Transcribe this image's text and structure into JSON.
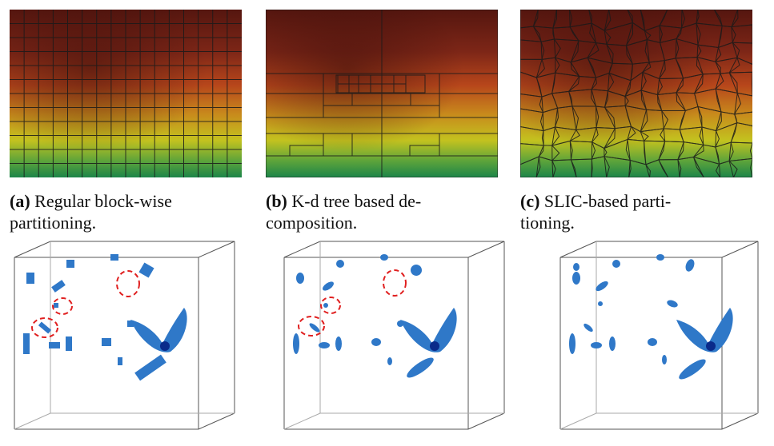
{
  "captions": {
    "a": {
      "tag": "(a)",
      "line1": "Regular block-wise",
      "line2": "partitioning."
    },
    "b": {
      "tag": "(b)",
      "line1": "K-d tree based de-",
      "line2": "composition."
    },
    "c": {
      "tag": "(c)",
      "line1": "SLIC-based parti-",
      "line2": "tioning."
    }
  },
  "panels": {
    "a": {
      "method": "regular-grid"
    },
    "b": {
      "method": "kd-tree"
    },
    "c": {
      "method": "slic-superpixels"
    }
  },
  "colors": {
    "heatmap_top": "#5a1c14",
    "heatmap_upper": "#8a2a18",
    "heatmap_mid": "#c04a1a",
    "heatmap_yellow": "#c8c21e",
    "heatmap_bottom": "#1f8a4a",
    "blob": "#2f78c8",
    "blob_dark": "#0a2a8a",
    "circle": "#e02020",
    "cube_line": "#555555"
  }
}
